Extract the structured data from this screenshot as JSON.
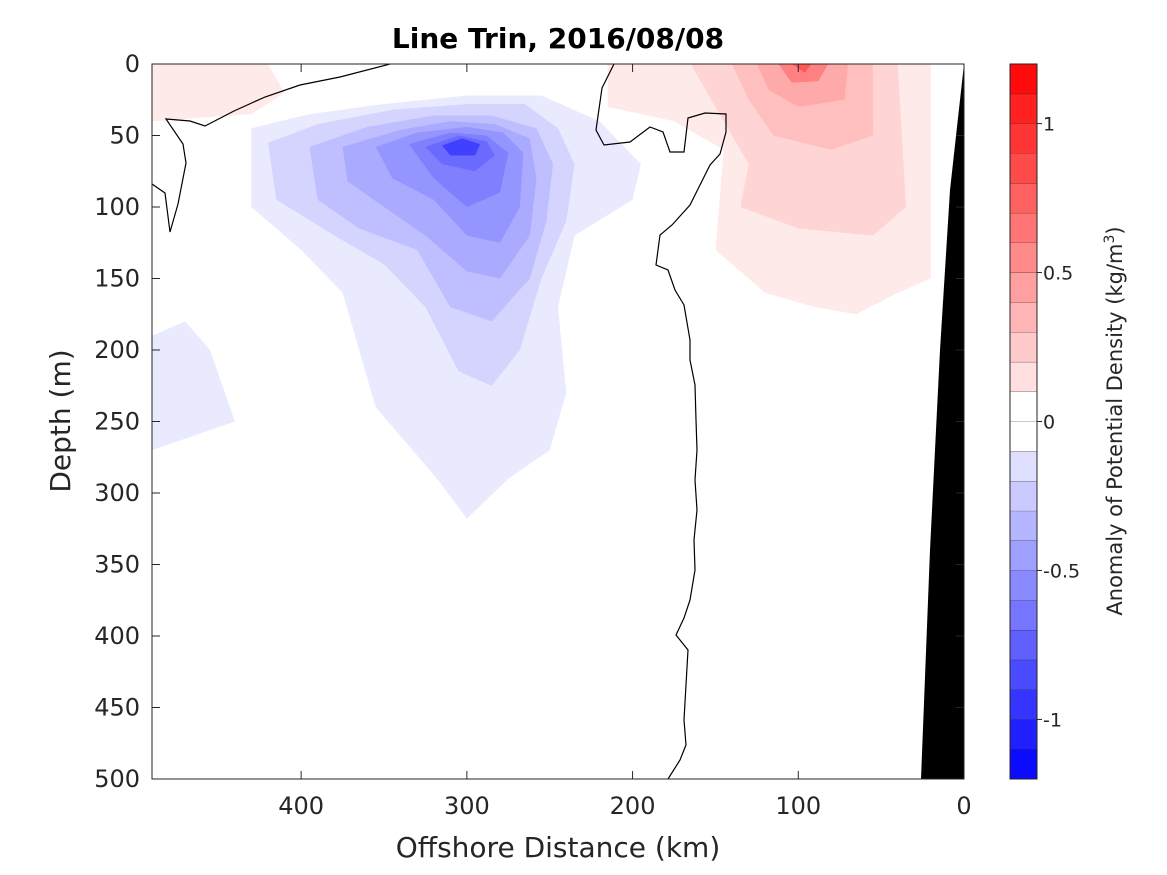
{
  "chart_data": {
    "type": "heatmap",
    "subtype": "filled-contour-section",
    "title": "Line Trin, 2016/08/08",
    "xlabel": "Offshore Distance (km)",
    "ylabel": "Depth (m)",
    "xlim": [
      490,
      0
    ],
    "x_reversed": true,
    "ylim": [
      0,
      500
    ],
    "y_reversed": true,
    "x_ticks": [
      400,
      300,
      200,
      100,
      0
    ],
    "x_tick_labels": [
      "400",
      "300",
      "200",
      "100",
      "0"
    ],
    "y_ticks": [
      0,
      50,
      100,
      150,
      200,
      250,
      300,
      350,
      400,
      450,
      500
    ],
    "y_tick_labels": [
      "0",
      "50",
      "100",
      "150",
      "200",
      "250",
      "300",
      "350",
      "400",
      "450",
      "500"
    ],
    "colorbar": {
      "label_main": "Anomaly of Potential Density (kg/m",
      "label_sup": "3",
      "label_end": ")",
      "range": [
        -1.2,
        1.2
      ],
      "step": 0.1,
      "ticks": [
        -1,
        -0.5,
        0,
        0.5,
        1
      ],
      "tick_labels": [
        "-1",
        "-0.5",
        "0",
        "0.5",
        "1"
      ],
      "colormap": "blue-white-red",
      "neg_color": "#0000ff",
      "pos_color": "#ff0000"
    },
    "features": {
      "zero_contour_color": "#000000",
      "bathymetry_color": "#000000",
      "min_anomaly": {
        "value": -1.05,
        "x_km": 305,
        "depth_m": 55
      },
      "max_anomaly": {
        "value": 0.9,
        "x_km": 100,
        "depth_m": 5
      }
    },
    "grid": false
  }
}
